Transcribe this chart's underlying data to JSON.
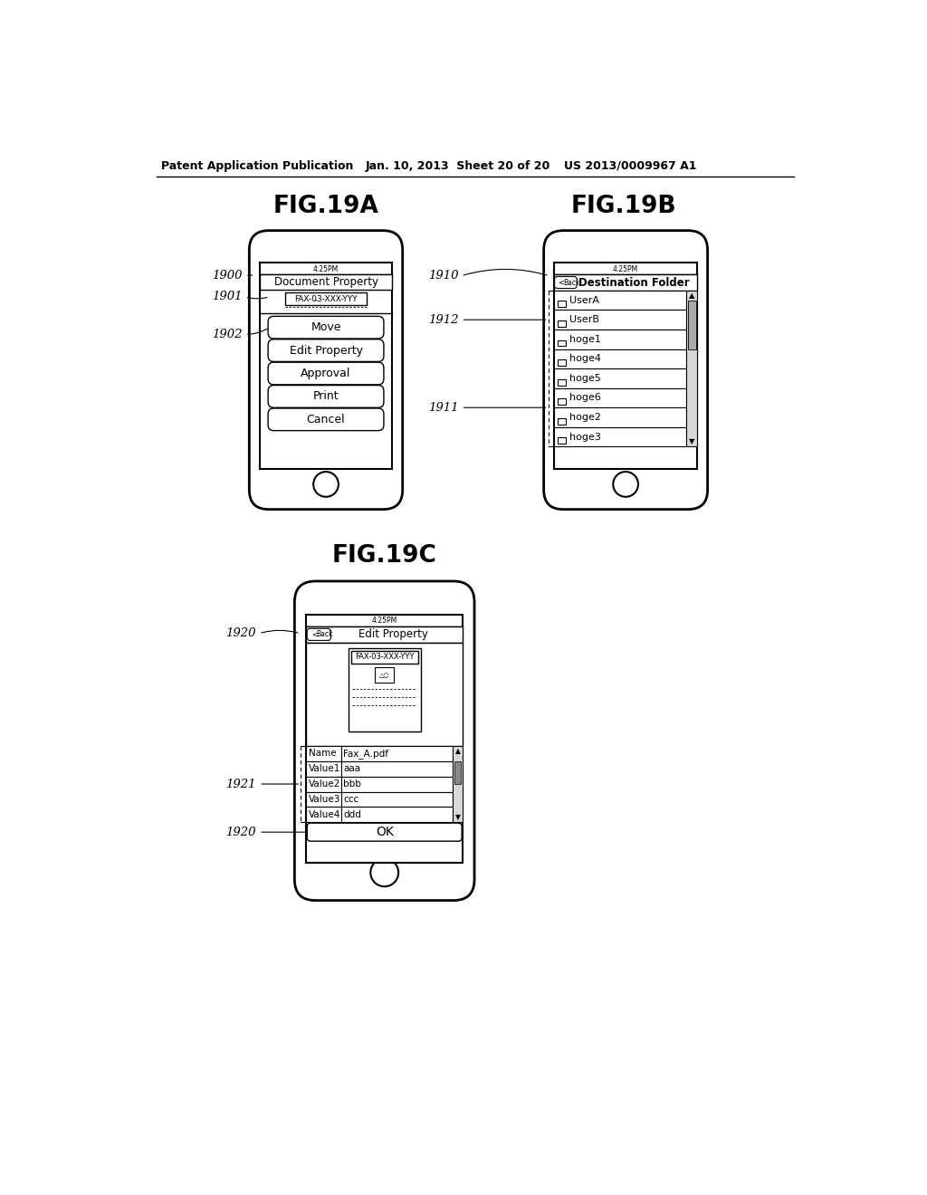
{
  "bg_color": "#ffffff",
  "header_left": "Patent Application Publication",
  "header_mid": "Jan. 10, 2013  Sheet 20 of 20",
  "header_right": "US 2013/0009967 A1",
  "fig_titles": [
    "FIG.19A",
    "FIG.19B",
    "FIG.19C"
  ],
  "fig19a": {
    "label": "1900",
    "screen_title": "Document Property",
    "time": "4:25PM",
    "filename": "FAX-03-XXX-YYY",
    "buttons": [
      "Move",
      "Edit Property",
      "Approval",
      "Print",
      "Cancel"
    ],
    "ref1": "1901",
    "ref2": "1902"
  },
  "fig19b": {
    "label": "1910",
    "screen_title": "Destination Folder",
    "time": "4:25PM",
    "folders": [
      "UserA",
      "UserB",
      "hoge1",
      "hoge4",
      "hoge5",
      "hoge6",
      "hoge2",
      "hoge3"
    ],
    "ref1": "1912",
    "ref2": "1911"
  },
  "fig19c": {
    "label": "1920",
    "screen_title": "Edit Property",
    "time": "4:25PM",
    "filename": "FAX-03-XXX-YYY",
    "table_rows": [
      [
        "Name",
        "Fax_A.pdf"
      ],
      [
        "Value1",
        "aaa"
      ],
      [
        "Value2",
        "bbb"
      ],
      [
        "Value3",
        "ccc"
      ],
      [
        "Value4",
        "ddd"
      ]
    ],
    "ref1": "1921",
    "ref2": "1920"
  }
}
